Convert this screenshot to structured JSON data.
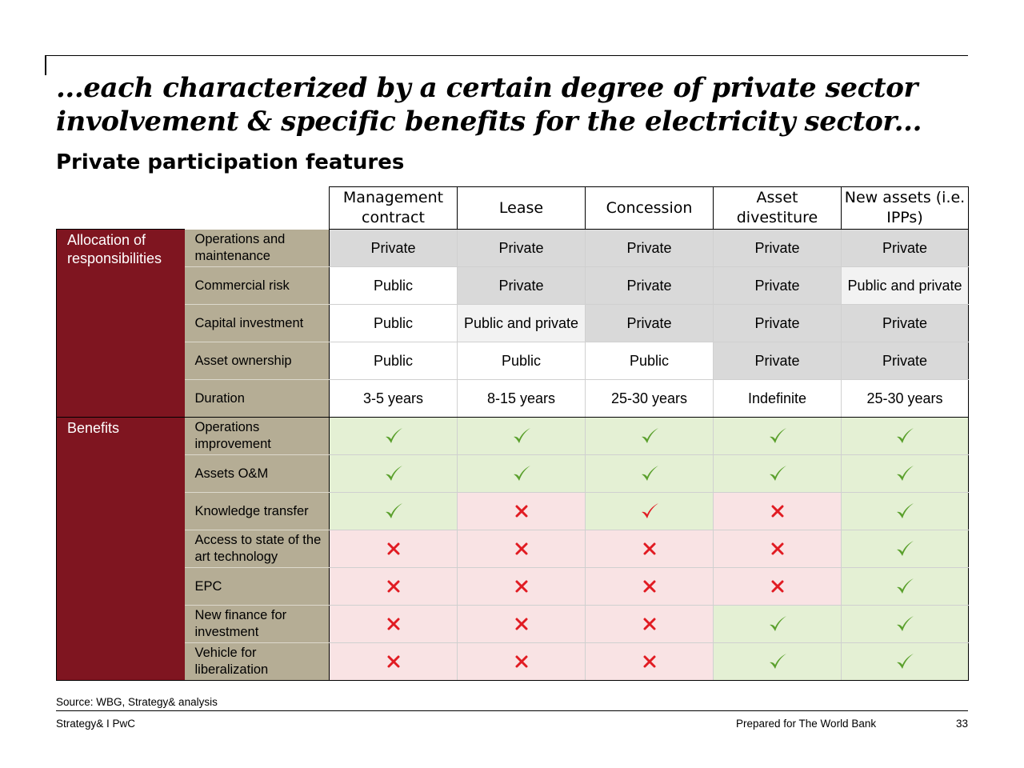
{
  "title": "...each characterized by a certain degree of private sector involvement & specific benefits for the electricity sector...",
  "subtitle": "Private participation features",
  "colors": {
    "group_bg": "#7f1520",
    "feature_bg": "#b5ad95",
    "private_gray": "#d9d9d9",
    "mixed_light": "#f2f2f2",
    "yes_green_bg": "#e4f0d4",
    "no_red_bg": "#f9e3e4",
    "check_green": "#5aa02c",
    "check_red": "#e11b22",
    "cross_red": "#e11b22"
  },
  "columns": [
    "Management contract",
    "Lease",
    "Concession",
    "Asset divestiture",
    "New assets (i.e. IPPs)"
  ],
  "groups": [
    {
      "label": "Allocation of responsibilities",
      "rows": [
        {
          "feature": "Operations and maintenance",
          "cells": [
            {
              "text": "Private",
              "shade": "gray"
            },
            {
              "text": "Private",
              "shade": "gray"
            },
            {
              "text": "Private",
              "shade": "gray"
            },
            {
              "text": "Private",
              "shade": "gray"
            },
            {
              "text": "Private",
              "shade": "gray"
            }
          ]
        },
        {
          "feature": "Commercial risk",
          "cells": [
            {
              "text": "Public",
              "shade": "white"
            },
            {
              "text": "Private",
              "shade": "gray"
            },
            {
              "text": "Private",
              "shade": "gray"
            },
            {
              "text": "Private",
              "shade": "gray"
            },
            {
              "text": "Public and private",
              "shade": "light"
            }
          ]
        },
        {
          "feature": "Capital investment",
          "cells": [
            {
              "text": "Public",
              "shade": "white"
            },
            {
              "text": "Public and private",
              "shade": "light"
            },
            {
              "text": "Private",
              "shade": "gray"
            },
            {
              "text": "Private",
              "shade": "gray"
            },
            {
              "text": "Private",
              "shade": "gray"
            }
          ]
        },
        {
          "feature": "Asset ownership",
          "cells": [
            {
              "text": "Public",
              "shade": "white"
            },
            {
              "text": "Public",
              "shade": "white"
            },
            {
              "text": "Public",
              "shade": "white"
            },
            {
              "text": "Private",
              "shade": "gray"
            },
            {
              "text": "Private",
              "shade": "gray"
            }
          ]
        },
        {
          "feature": "Duration",
          "cells": [
            {
              "text": "3-5 years",
              "shade": "white"
            },
            {
              "text": "8-15 years",
              "shade": "white"
            },
            {
              "text": "25-30 years",
              "shade": "white"
            },
            {
              "text": "Indefinite",
              "shade": "white"
            },
            {
              "text": "25-30 years",
              "shade": "white"
            }
          ]
        }
      ]
    },
    {
      "label": "Benefits",
      "rows": [
        {
          "feature": "Operations improvement",
          "cells": [
            {
              "mark": "check",
              "shade": "green"
            },
            {
              "mark": "check",
              "shade": "green"
            },
            {
              "mark": "check",
              "shade": "green"
            },
            {
              "mark": "check",
              "shade": "green"
            },
            {
              "mark": "check",
              "shade": "green"
            }
          ]
        },
        {
          "feature": "Assets O&M",
          "cells": [
            {
              "mark": "check",
              "shade": "green"
            },
            {
              "mark": "check",
              "shade": "green"
            },
            {
              "mark": "check",
              "shade": "green"
            },
            {
              "mark": "check",
              "shade": "green"
            },
            {
              "mark": "check",
              "shade": "green"
            }
          ]
        },
        {
          "feature": "Knowledge transfer",
          "cells": [
            {
              "mark": "check",
              "shade": "green"
            },
            {
              "mark": "cross",
              "shade": "red"
            },
            {
              "mark": "check-red",
              "shade": "green"
            },
            {
              "mark": "cross",
              "shade": "red"
            },
            {
              "mark": "check",
              "shade": "green"
            }
          ]
        },
        {
          "feature": "Access to state of the art technology",
          "cells": [
            {
              "mark": "cross",
              "shade": "red"
            },
            {
              "mark": "cross",
              "shade": "red"
            },
            {
              "mark": "cross",
              "shade": "red"
            },
            {
              "mark": "cross",
              "shade": "red"
            },
            {
              "mark": "check",
              "shade": "green"
            }
          ]
        },
        {
          "feature": "EPC",
          "cells": [
            {
              "mark": "cross",
              "shade": "red"
            },
            {
              "mark": "cross",
              "shade": "red"
            },
            {
              "mark": "cross",
              "shade": "red"
            },
            {
              "mark": "cross",
              "shade": "red"
            },
            {
              "mark": "check",
              "shade": "green"
            }
          ]
        },
        {
          "feature": "New finance for investment",
          "cells": [
            {
              "mark": "cross",
              "shade": "red"
            },
            {
              "mark": "cross",
              "shade": "red"
            },
            {
              "mark": "cross",
              "shade": "red"
            },
            {
              "mark": "check",
              "shade": "green"
            },
            {
              "mark": "check",
              "shade": "green"
            }
          ]
        },
        {
          "feature": "Vehicle for liberalization",
          "cells": [
            {
              "mark": "cross",
              "shade": "red"
            },
            {
              "mark": "cross",
              "shade": "red"
            },
            {
              "mark": "cross",
              "shade": "red"
            },
            {
              "mark": "check",
              "shade": "green"
            },
            {
              "mark": "check",
              "shade": "green"
            }
          ]
        }
      ]
    }
  ],
  "source": "Source: WBG, Strategy& analysis",
  "footer": {
    "left": "Strategy& I PwC",
    "middle": "Prepared for The World Bank",
    "page": "33"
  }
}
